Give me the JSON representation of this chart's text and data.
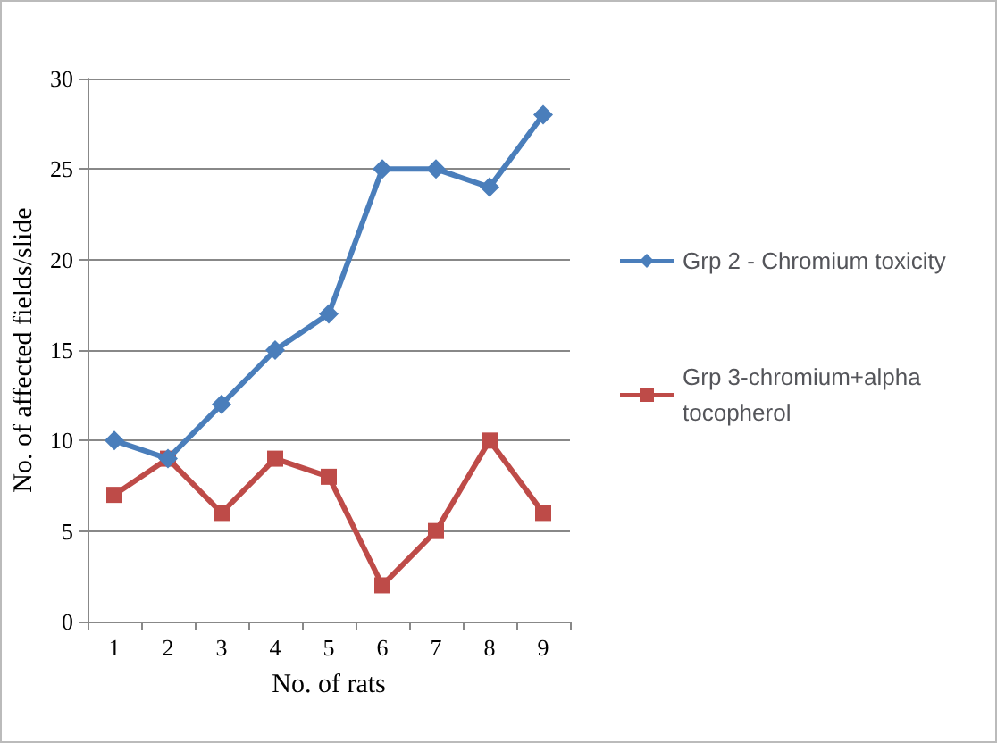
{
  "chart_data": {
    "type": "line",
    "xlabel": "No. of rats",
    "ylabel": "No. of affected fields/slide",
    "categories": [
      "1",
      "2",
      "3",
      "4",
      "5",
      "6",
      "7",
      "8",
      "9"
    ],
    "series": [
      {
        "name": "Grp 2 - Chromium toxicity",
        "color": "#4a7ebb",
        "marker": "diamond",
        "values": [
          10,
          9,
          12,
          15,
          17,
          25,
          25,
          24,
          28
        ]
      },
      {
        "name": "Grp 3-chromium+alpha tocopherol",
        "color": "#be4b48",
        "marker": "square",
        "values": [
          7,
          9,
          6,
          9,
          8,
          2,
          5,
          10,
          6
        ]
      }
    ],
    "ylim": [
      0,
      30
    ],
    "yticks": [
      0,
      5,
      10,
      15,
      20,
      25,
      30
    ],
    "grid": "y",
    "legend": "right",
    "line_style": "solid"
  }
}
